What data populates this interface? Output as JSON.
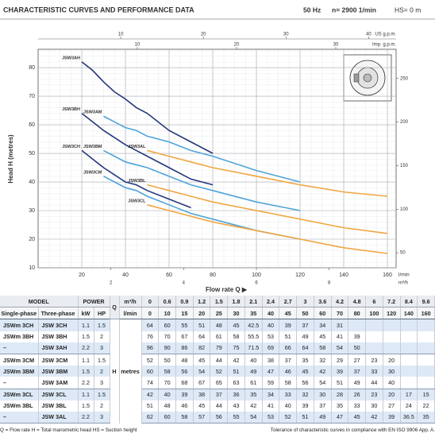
{
  "header": {
    "title": "CHARACTERISTIC CURVES AND PERFORMANCE DATA",
    "frequency": "50 Hz",
    "speed": "n= 2900 1/min",
    "suction": "HS= 0 m"
  },
  "chart_data": {
    "type": "line",
    "y_label": "Head H (metres)",
    "x_label": "Flow rate Q ▶",
    "x_unit": "l/min",
    "xlim": [
      0,
      164
    ],
    "xticks": [
      20,
      40,
      60,
      80,
      100,
      120,
      140,
      160
    ],
    "ylim": [
      10,
      86.4
    ],
    "yticks": [
      10,
      20,
      30,
      40,
      50,
      60,
      70,
      80
    ],
    "y2lim": [
      32.8,
      283.5
    ],
    "y2ticks": [
      50,
      100,
      150,
      200,
      250
    ],
    "us_gpm": {
      "label": "US g.p.m.",
      "lim": [
        0,
        43.33
      ],
      "ticks": [
        10,
        20,
        30,
        40
      ]
    },
    "imp_gpm": {
      "label": "Imp. g.p.m.",
      "lim": [
        0,
        36.08
      ],
      "ticks": [
        10,
        20,
        30
      ]
    },
    "m3h": {
      "label": "m³/h",
      "lim": [
        0,
        9.84
      ],
      "ticks": [
        2,
        4,
        6,
        8
      ]
    },
    "grid": true,
    "series": [
      {
        "name": "JSW3AH",
        "color": "#26377a",
        "x": [
          20,
          25,
          30,
          35,
          40,
          45,
          50,
          60,
          70,
          80
        ],
        "values": [
          82,
          79,
          75,
          71.5,
          69,
          66,
          64,
          58,
          54,
          50
        ]
      },
      {
        "name": "JSW3BH",
        "color": "#26377a",
        "x": [
          20,
          25,
          30,
          35,
          40,
          45,
          50,
          60,
          70,
          80
        ],
        "values": [
          64,
          61,
          58,
          55.5,
          53,
          51,
          49,
          45,
          41,
          39
        ]
      },
      {
        "name": "JSW3CH",
        "color": "#26377a",
        "x": [
          20,
          25,
          30,
          35,
          40,
          45,
          50,
          60,
          70
        ],
        "values": [
          51,
          48,
          45,
          42.5,
          40,
          39,
          37,
          34,
          31
        ]
      },
      {
        "name": "JSW3AM",
        "color": "#4ea4d9",
        "x": [
          30,
          35,
          40,
          45,
          50,
          60,
          70,
          80,
          100,
          120
        ],
        "values": [
          63,
          61,
          59,
          58,
          56,
          54,
          51,
          49,
          44,
          40
        ]
      },
      {
        "name": "JSW3BM",
        "color": "#4ea4d9",
        "x": [
          30,
          35,
          40,
          45,
          50,
          60,
          70,
          80,
          100,
          120
        ],
        "values": [
          51,
          49,
          47,
          46,
          45,
          42,
          39,
          37,
          33,
          30
        ]
      },
      {
        "name": "JSW3CM",
        "color": "#4ea4d9",
        "x": [
          30,
          35,
          40,
          45,
          50,
          60,
          70,
          80,
          100,
          120
        ],
        "values": [
          42,
          40,
          38,
          37,
          35,
          32,
          29,
          27,
          23,
          20
        ]
      },
      {
        "name": "JSW3AL",
        "color": "#f1a640",
        "x": [
          50,
          60,
          70,
          80,
          100,
          120,
          140,
          160
        ],
        "values": [
          51,
          49,
          47,
          45,
          42,
          39,
          36.5,
          35
        ]
      },
      {
        "name": "JSW3BL",
        "color": "#f1a640",
        "x": [
          50,
          60,
          70,
          80,
          100,
          120,
          140,
          160
        ],
        "values": [
          39,
          37,
          35,
          33,
          30,
          27,
          24,
          22
        ]
      },
      {
        "name": "JSW3CL",
        "color": "#f1a640",
        "x": [
          50,
          60,
          70,
          80,
          100,
          120,
          140,
          160
        ],
        "values": [
          32,
          30,
          28,
          26,
          23,
          20,
          17,
          15
        ]
      }
    ]
  },
  "table": {
    "model": "MODEL",
    "power": "POWER",
    "single_phase": "Single-phase",
    "three_phase": "Three-phase",
    "kw": "kW",
    "hp": "HP",
    "q": "Q",
    "m3h": "m³/h",
    "lmin": "l/min",
    "h": "H",
    "metres": "metres",
    "flow_m3h": [
      0,
      0.6,
      0.9,
      1.2,
      1.5,
      1.8,
      2.1,
      2.4,
      2.7,
      3.0,
      3.6,
      4.2,
      4.8,
      6.0,
      7.2,
      8.4,
      9.6
    ],
    "flow_lmin": [
      0,
      10,
      15,
      20,
      25,
      30,
      35,
      40,
      45,
      50,
      60,
      70,
      80,
      100,
      120,
      140,
      160
    ],
    "rows": [
      {
        "single": "JSWm 3CH",
        "three": "JSW 3CH",
        "kw": 1.1,
        "hp": 1.5,
        "head": [
          64,
          60,
          55,
          51,
          48,
          45,
          42.5,
          40,
          39,
          37,
          34,
          31
        ]
      },
      {
        "single": "JSWm 3BH",
        "three": "JSW 3BH",
        "kw": 1.5,
        "hp": 2,
        "head": [
          76,
          70,
          67,
          64,
          61,
          58,
          55.5,
          53,
          51,
          49,
          45,
          41,
          39
        ]
      },
      {
        "single": "–",
        "three": "JSW 3AH",
        "kw": 2.2,
        "hp": 3,
        "head": [
          96,
          90,
          86,
          82,
          79,
          75,
          71.5,
          69,
          66,
          64,
          58,
          54,
          50
        ]
      },
      {
        "single": "JSWm 3CM",
        "three": "JSW 3CM",
        "kw": 1.1,
        "hp": 1.5,
        "head": [
          52,
          50,
          48,
          45,
          44,
          42,
          40,
          38,
          37,
          35,
          32,
          29,
          27,
          23,
          20
        ]
      },
      {
        "single": "JSWm 3BM",
        "three": "JSW 3BM",
        "kw": 1.5,
        "hp": 2,
        "head": [
          60,
          58,
          56,
          54,
          52,
          51,
          49,
          47,
          46,
          45,
          42,
          39,
          37,
          33,
          30
        ]
      },
      {
        "single": "–",
        "three": "JSW 3AM",
        "kw": 2.2,
        "hp": 3,
        "head": [
          74,
          70,
          68,
          67,
          65,
          63,
          61,
          59,
          58,
          56,
          54,
          51,
          49,
          44,
          40
        ]
      },
      {
        "single": "JSWm 3CL",
        "three": "JSW 3CL",
        "kw": 1.1,
        "hp": 1.5,
        "head": [
          42,
          40,
          39,
          38,
          37,
          36,
          35,
          34,
          33,
          32,
          30,
          28,
          26,
          23,
          20,
          17,
          15
        ]
      },
      {
        "single": "JSWm 3BL",
        "three": "JSW 3BL",
        "kw": 1.5,
        "hp": 2,
        "head": [
          51,
          48,
          46,
          45,
          44,
          43,
          42,
          41,
          40,
          39,
          37,
          35,
          33,
          30,
          27,
          24,
          22
        ]
      },
      {
        "single": "–",
        "three": "JSW 3AL",
        "kw": 2.2,
        "hp": 3,
        "head": [
          62,
          60,
          58,
          57,
          56,
          55,
          54,
          53,
          52,
          51,
          49,
          47,
          45,
          42,
          39,
          36.5,
          35
        ]
      }
    ]
  },
  "footer": {
    "legend": "Q = Flow rate  H = Total manometric head  HS = Suction height",
    "tolerance": "Tolerance of characteristic curves in compliance with EN ISO 9906 App. A."
  }
}
